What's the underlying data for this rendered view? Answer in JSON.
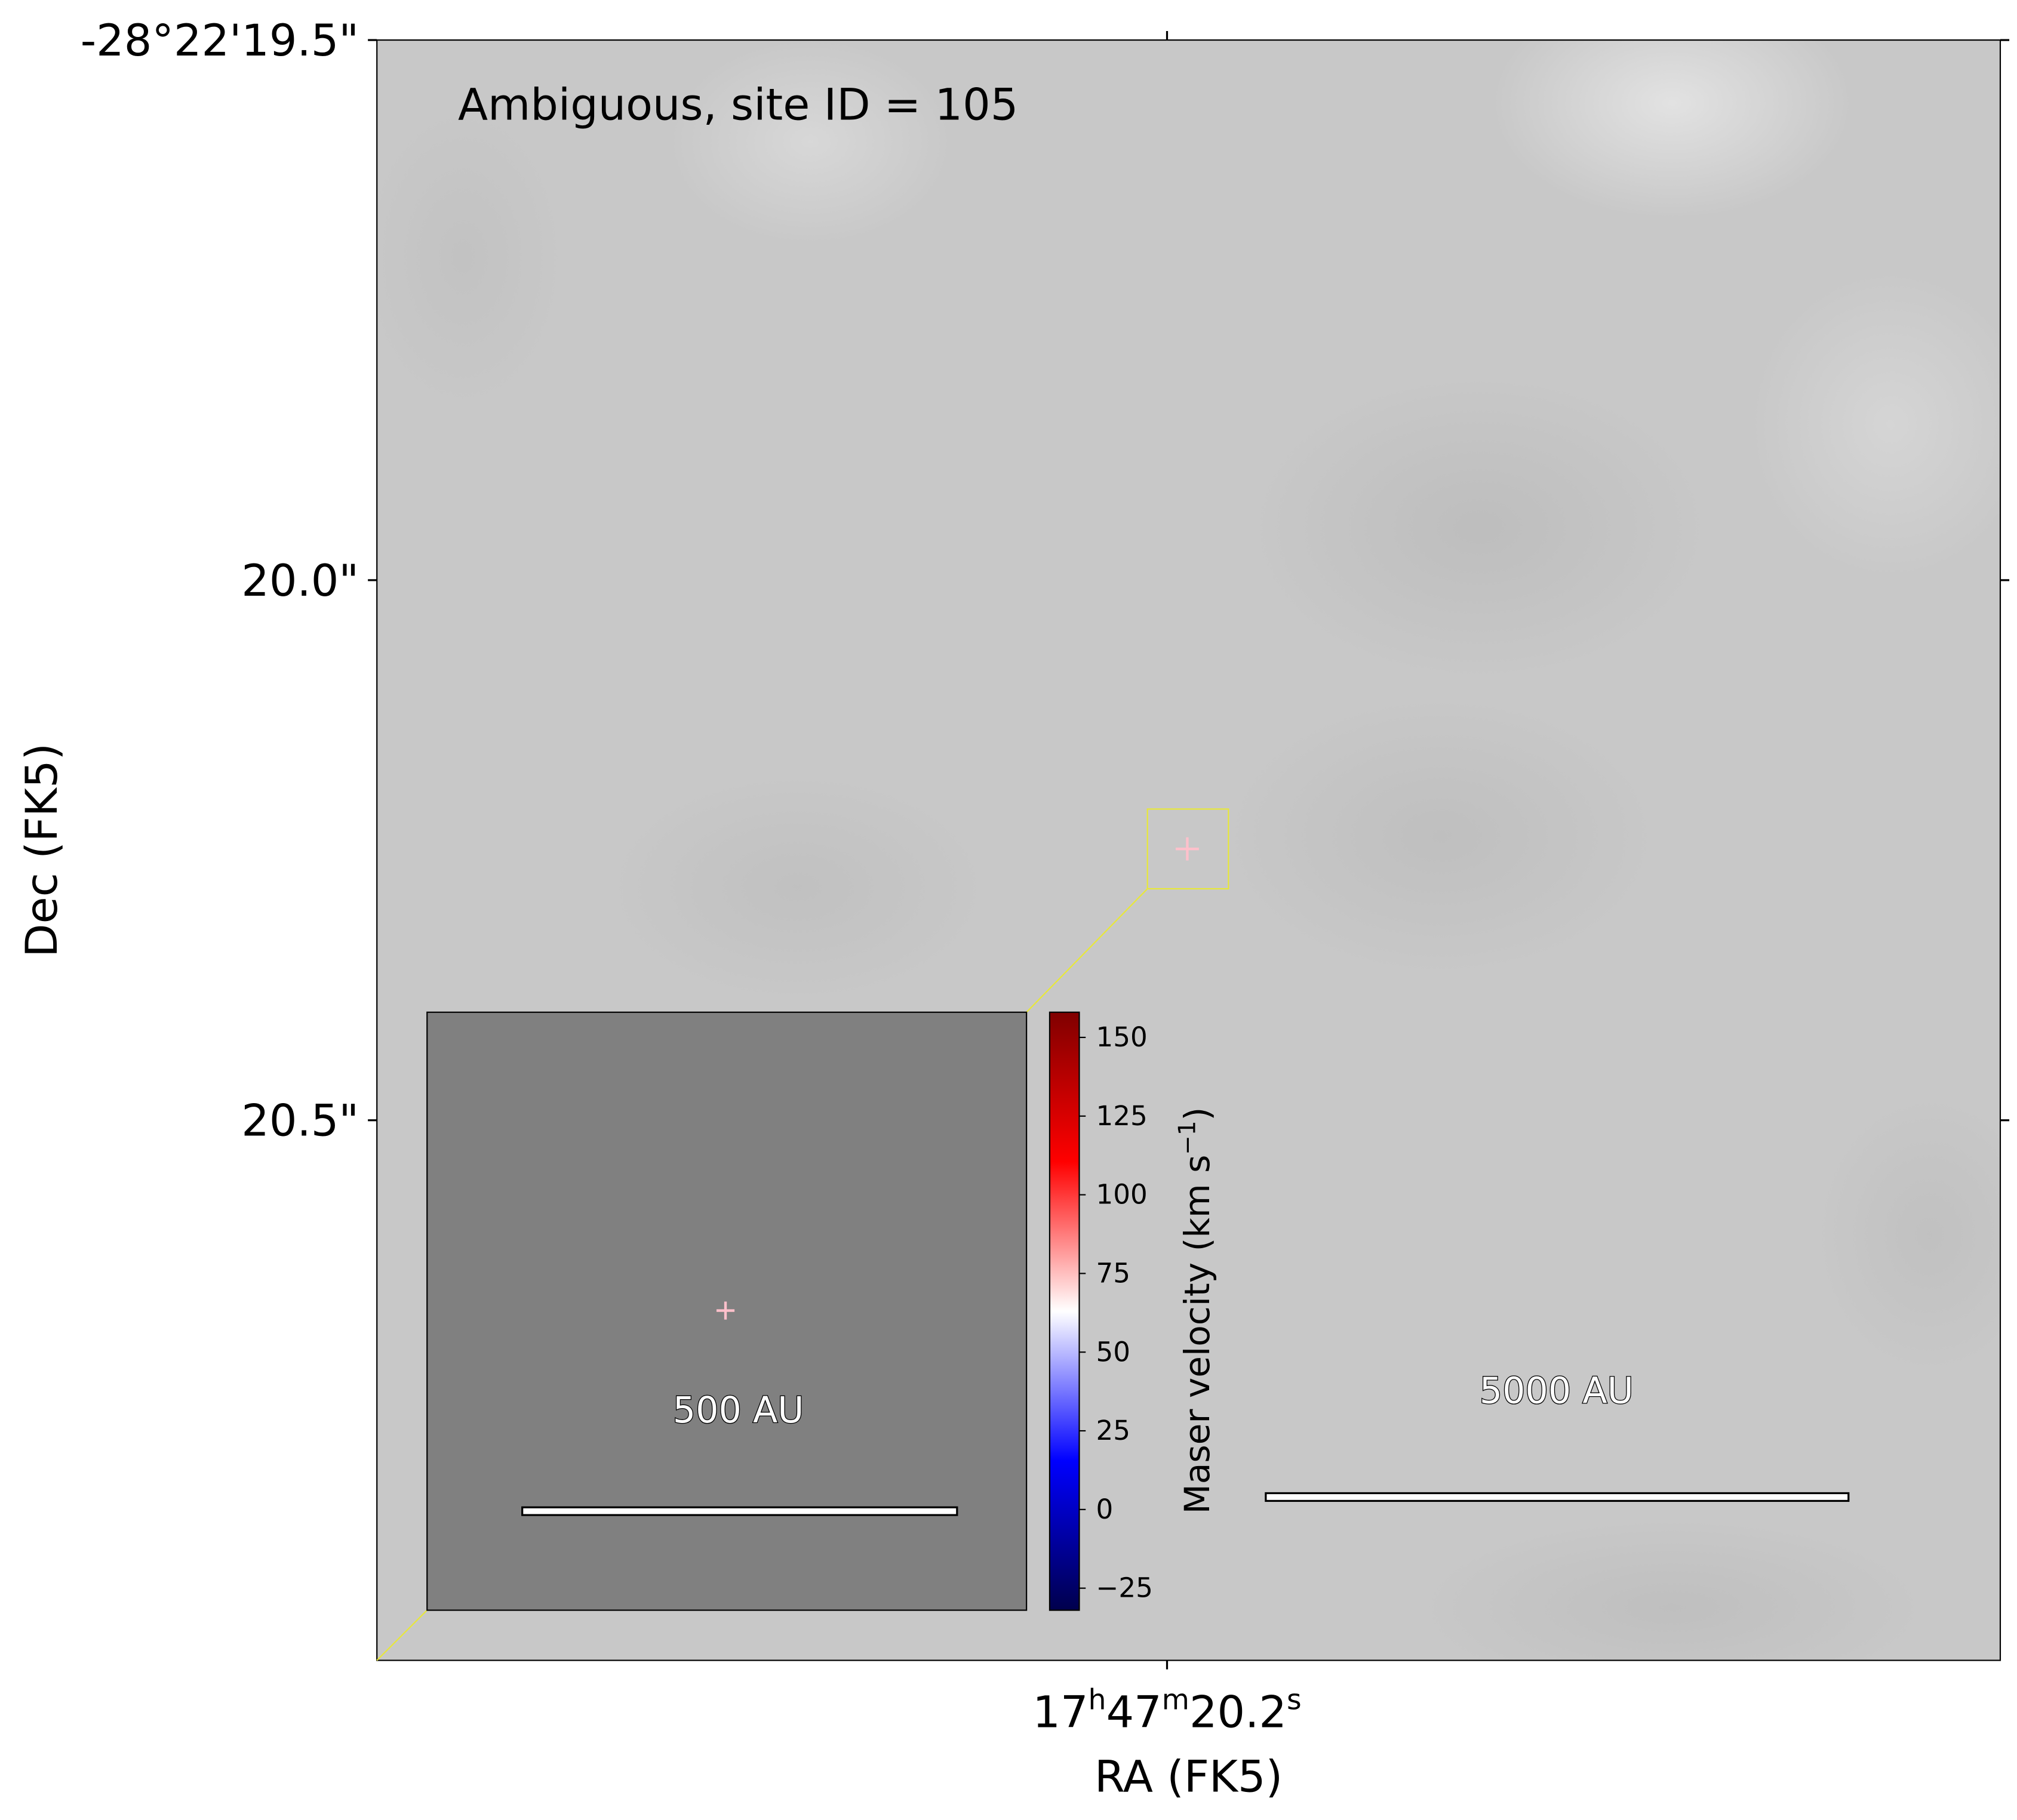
{
  "chart_data": {
    "type": "image",
    "annotation": "Ambiguous, site ID = 105",
    "x_label": "RA (FK5)",
    "y_label": "Dec (FK5)",
    "xlim": [
      20.255,
      20.142
    ],
    "xticks": [
      {
        "value": 20.2,
        "label": "17h47m20.2s"
      }
    ],
    "ylim": [
      21.0,
      19.5
    ],
    "yticks": [
      {
        "value": 19.5,
        "label": "-28°22'19.5\""
      },
      {
        "value": 20.0,
        "label": "20.0\""
      },
      {
        "value": 20.5,
        "label": "20.5\""
      }
    ],
    "colorbar": {
      "label": "Maser velocity (km s−1)",
      "clim": [
        -32,
        158
      ],
      "ticks": [
        {
          "value": -25,
          "label": "−25"
        },
        0,
        25,
        50,
        75,
        100,
        125,
        150
      ],
      "colormap": [
        "#00004c",
        "#0000ff",
        "#ffffff",
        "#ff0000",
        "#800000"
      ]
    },
    "inset_scale_label": "500 AU",
    "main_scale_label": "5000 AU"
  }
}
